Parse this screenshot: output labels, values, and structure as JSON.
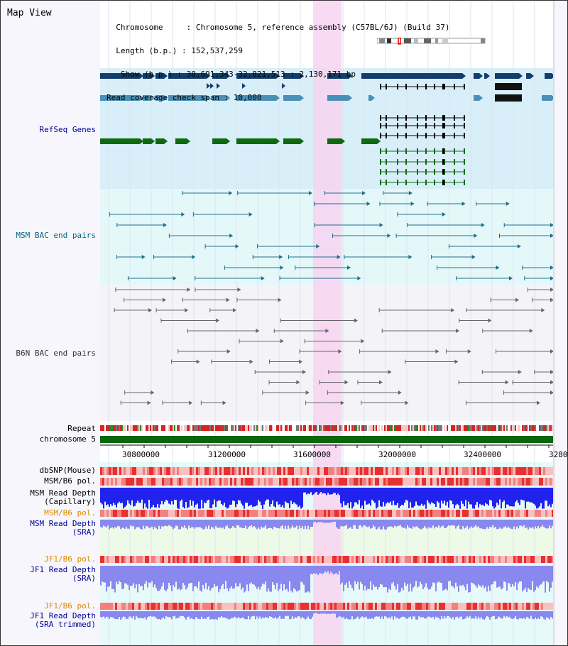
{
  "header": {
    "title": "Map View",
    "info_lines": [
      "  Chromosome     : Chromosome 5, reference assembly (C57BL/6J) (Build 37)",
      "  Length (b.p.) : 152,537,259",
      "   Show (b.p.) : 30,691,343-32,821,513 : 2,130,171 bp",
      "Read coverage check span : 10,000"
    ]
  },
  "tracks": {
    "refseq": {
      "label": "RefSeq Genes",
      "color": "#000099"
    },
    "msm_bac": {
      "label": "MSM BAC end pairs",
      "color": "#006680"
    },
    "b6n_bac": {
      "label": "B6N BAC end pairs",
      "color": "#333333"
    },
    "repeat": {
      "label": "Repeat"
    },
    "chromosome": {
      "label": "chromosome 5"
    },
    "dbsnp": {
      "label": "dbSNP(Mouse)"
    },
    "msm_b6_pol_1": {
      "label": "MSM/B6 pol."
    },
    "msm_depth_cap": {
      "label_1": "MSM Read Depth",
      "label_2": "(Capillary)"
    },
    "msm_b6_pol_2": {
      "label": "MSM/B6 pol.",
      "color": "#e08a00"
    },
    "msm_depth_sra": {
      "label_1": "MSM Read Depth",
      "label_2": "(SRA)",
      "color": "#000099"
    },
    "jf1_b6_pol_1": {
      "label": "JF1/B6 pol.",
      "color": "#e08a00"
    },
    "jf1_depth_sra": {
      "label_1": "JF1 Read Depth",
      "label_2": "(SRA)",
      "color": "#000099"
    },
    "jf1_b6_pol_2": {
      "label": "JF1/B6 pol.",
      "color": "#e08a00"
    },
    "jf1_depth_trim": {
      "label_1": "JF1 Read Depth",
      "label_2": "(SRA trimmed)",
      "color": "#000099"
    }
  },
  "axis": {
    "ticks": [
      "30800000",
      "31200000",
      "31600000",
      "32000000",
      "32400000",
      "3280"
    ]
  },
  "colors": {
    "highlight": "#f7d3f0",
    "refseq_bg": "#d8eef8",
    "bac_bg": "#e4f8fa",
    "gene_dark": "#123e6e",
    "gene_mid": "#4a8fb5",
    "gene_green": "#0f6a0f",
    "depth_blue": "#2222ee",
    "depth_light": "#8888ee"
  }
}
